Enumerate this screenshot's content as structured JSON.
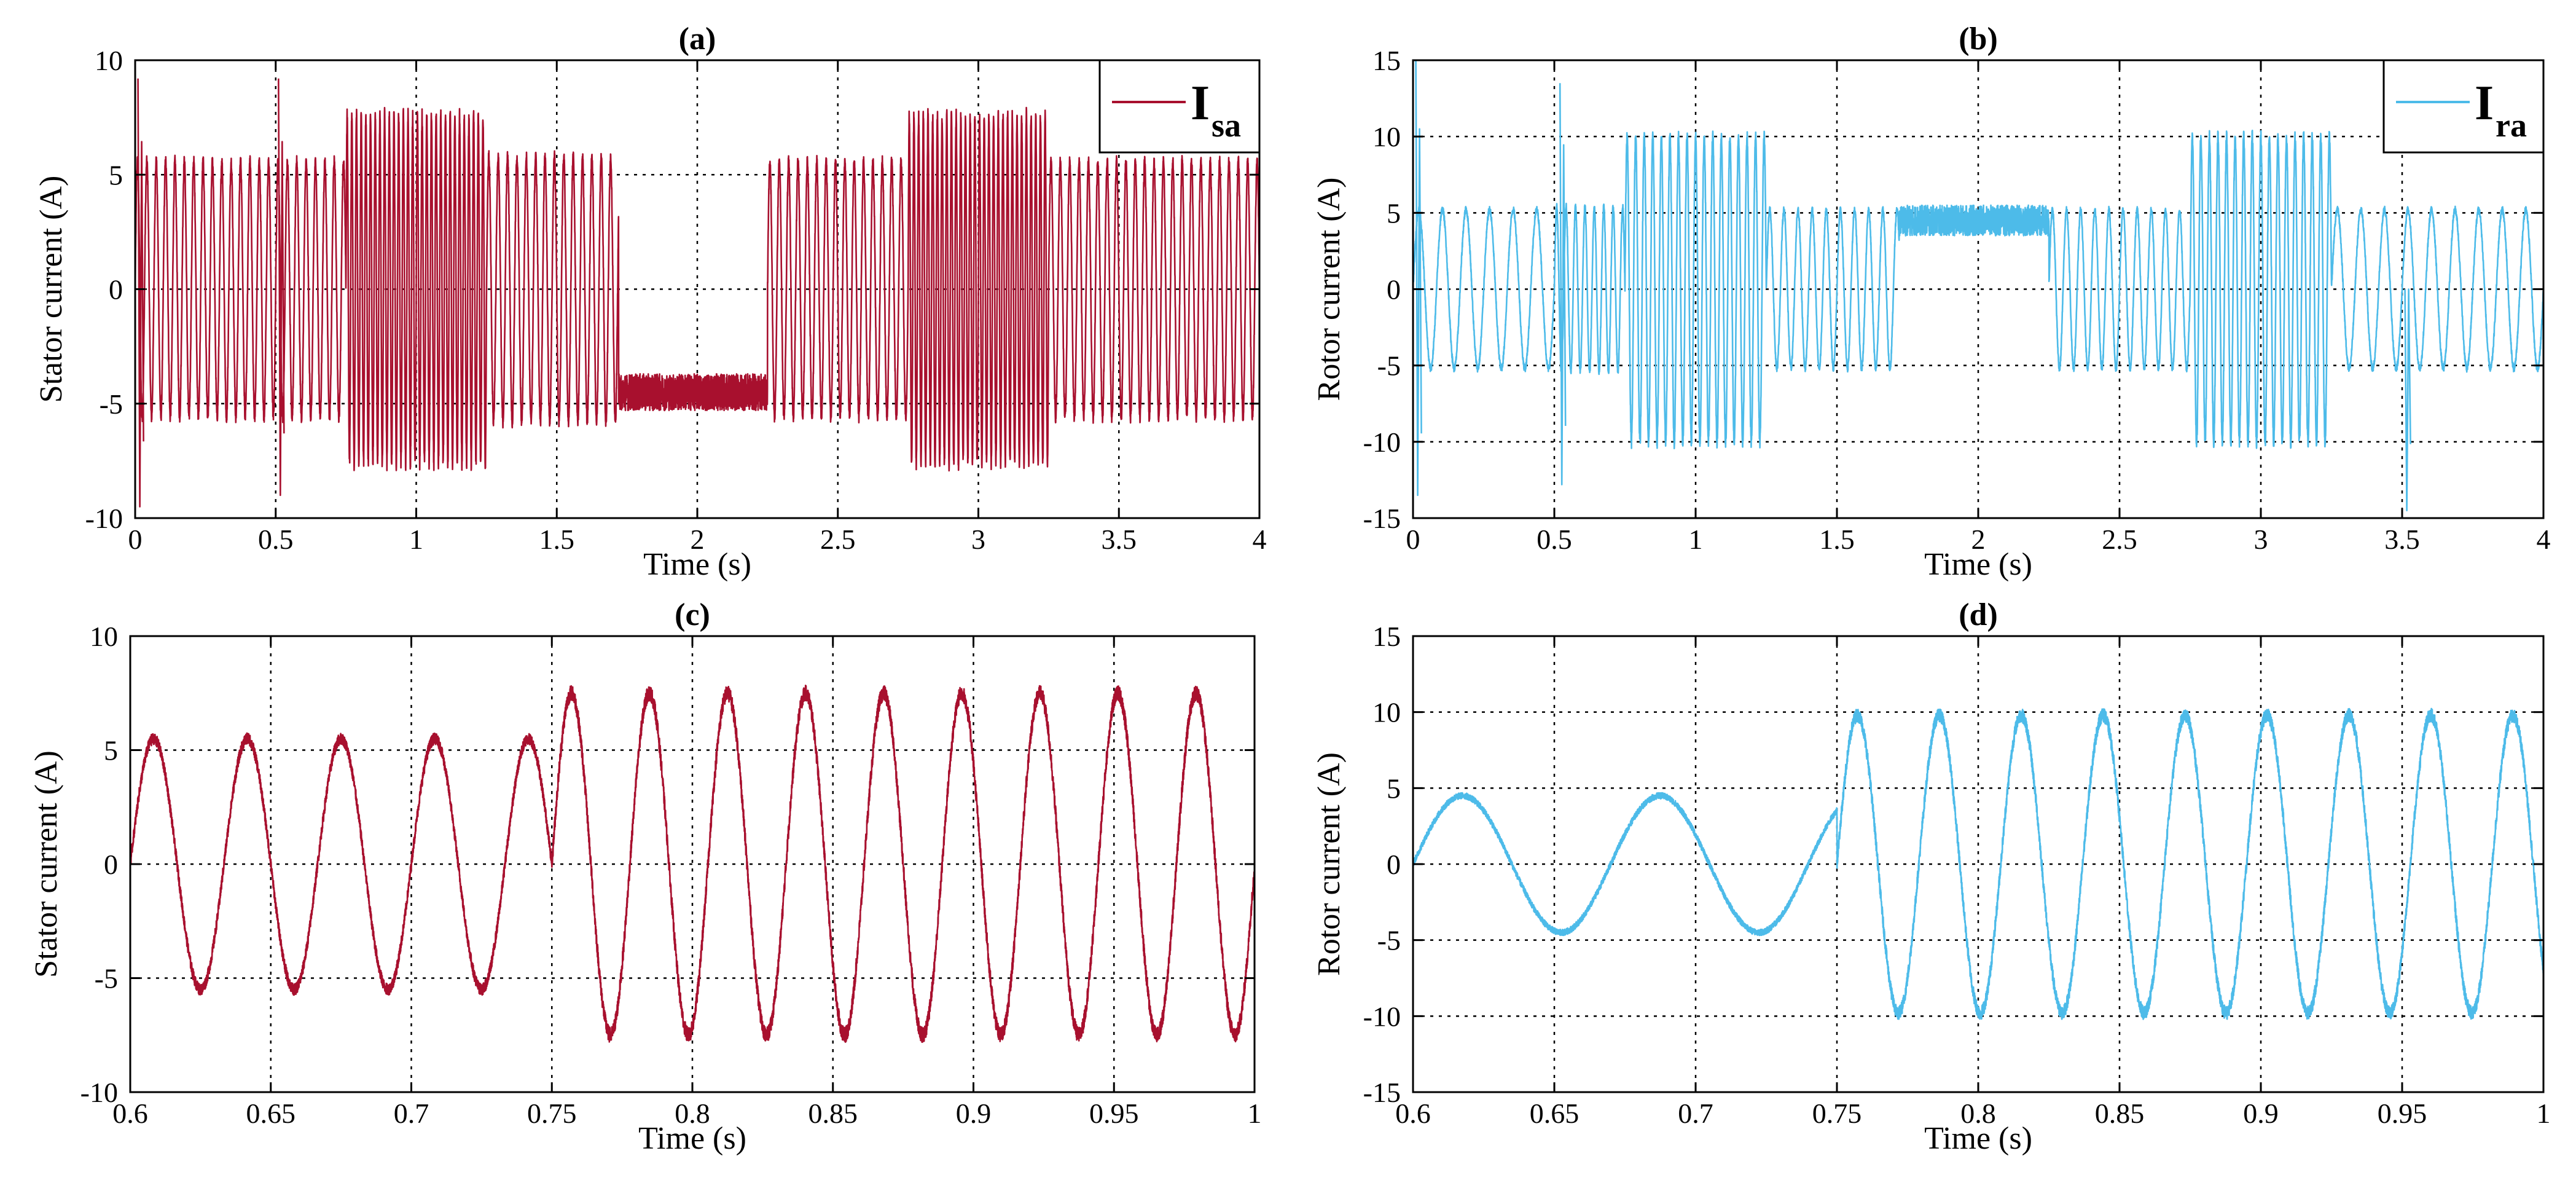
{
  "chart_data": [
    {
      "panel": "a",
      "type": "line",
      "title": "(a)",
      "xlabel": "Time (s)",
      "ylabel": "Stator current (A)",
      "xlim": [
        0,
        4
      ],
      "ylim": [
        -10,
        10
      ],
      "xticks": [
        0,
        0.5,
        1,
        1.5,
        2,
        2.5,
        3,
        3.5,
        4
      ],
      "yticks": [
        -10,
        -5,
        0,
        5,
        10
      ],
      "xtick_labels": [
        "0",
        "0.5",
        "1",
        "1.5",
        "2",
        "2.5",
        "3",
        "3.5",
        "4"
      ],
      "ytick_labels": [
        "-10",
        "-5",
        "0",
        "5",
        "10"
      ],
      "grid": true,
      "legend_position": "top-right",
      "color": "#A8102E",
      "series": [
        {
          "name_main": "I",
          "name_sub": "sa",
          "segments": [
            {
              "t_start": 0,
              "t_end": 0.75,
              "amplitude": 5.6,
              "frequency_hz": 30
            },
            {
              "t_start": 0.75,
              "t_end": 1.25,
              "amplitude": 7.6,
              "frequency_hz": 60
            },
            {
              "t_start": 1.25,
              "t_end": 1.72,
              "amplitude": 5.8,
              "frequency_hz": 30
            },
            {
              "t_start": 1.72,
              "t_end": 2.25,
              "offset": -4.5,
              "ripple": 0.8
            },
            {
              "t_start": 2.25,
              "t_end": 2.75,
              "amplitude": 5.6,
              "frequency_hz": 30
            },
            {
              "t_start": 2.75,
              "t_end": 3.25,
              "amplitude": 7.6,
              "frequency_hz": 60
            },
            {
              "t_start": 3.25,
              "t_end": 4,
              "amplitude": 5.6,
              "frequency_hz": 30
            }
          ],
          "transients": [
            {
              "t": 0.01,
              "peak_max": 9.2,
              "peak_min": -9.5
            },
            {
              "t": 0.51,
              "peak_max": 9.2,
              "peak_min": -9
            }
          ]
        }
      ]
    },
    {
      "panel": "b",
      "type": "line",
      "title": "(b)",
      "xlabel": "Time (s)",
      "ylabel": "Rotor current (A)",
      "xlim": [
        0,
        4
      ],
      "ylim": [
        -15,
        15
      ],
      "xticks": [
        0,
        0.5,
        1,
        1.5,
        2,
        2.5,
        3,
        3.5,
        4
      ],
      "yticks": [
        -15,
        -10,
        -5,
        0,
        5,
        10,
        15
      ],
      "xtick_labels": [
        "0",
        "0.5",
        "1",
        "1.5",
        "2",
        "2.5",
        "3",
        "3.5",
        "4"
      ],
      "ytick_labels": [
        "-15",
        "-10",
        "-5",
        "0",
        "5",
        "10",
        "15"
      ],
      "grid": true,
      "legend_position": "top-right",
      "color": "#4DBBE9",
      "series": [
        {
          "name_main": "I",
          "name_sub": "ra",
          "segments": [
            {
              "t_start": 0,
              "t_end": 0.5,
              "amplitude": 5.2,
              "frequency_hz": 12
            },
            {
              "t_start": 0.5,
              "t_end": 0.75,
              "amplitude": 5.4,
              "frequency_hz": 30
            },
            {
              "t_start": 0.75,
              "t_end": 1.25,
              "amplitude": 10,
              "frequency_hz": 33
            },
            {
              "t_start": 1.25,
              "t_end": 1.72,
              "amplitude": 5.2,
              "frequency_hz": 20
            },
            {
              "t_start": 1.72,
              "t_end": 2.25,
              "offset": 4.5,
              "ripple": 1
            },
            {
              "t_start": 2.25,
              "t_end": 2.75,
              "amplitude": 5.2,
              "frequency_hz": 20
            },
            {
              "t_start": 2.75,
              "t_end": 3.25,
              "amplitude": 10,
              "frequency_hz": 33
            },
            {
              "t_start": 3.25,
              "t_end": 4,
              "amplitude": 5.2,
              "frequency_hz": 12
            }
          ],
          "transients": [
            {
              "t": 0.01,
              "peak_max": 15,
              "peak_min": -13.5
            },
            {
              "t": 0.52,
              "peak_max": 13.5,
              "peak_min": -12.8
            },
            {
              "t": 3.51,
              "peak_max": 0,
              "peak_min": -14.5
            }
          ]
        }
      ]
    },
    {
      "panel": "c",
      "type": "line",
      "title": "(c)",
      "xlabel": "Time (s)",
      "ylabel": "Stator current (A)",
      "xlim": [
        0.6,
        1
      ],
      "ylim": [
        -10,
        10
      ],
      "xticks": [
        0.6,
        0.65,
        0.7,
        0.75,
        0.8,
        0.85,
        0.9,
        0.95,
        1
      ],
      "yticks": [
        -10,
        -5,
        0,
        5,
        10
      ],
      "xtick_labels": [
        "0.6",
        "0.65",
        "0.7",
        "0.75",
        "0.8",
        "0.85",
        "0.9",
        "0.95",
        "1"
      ],
      "ytick_labels": [
        "-10",
        "-5",
        "0",
        "5",
        "10"
      ],
      "grid": true,
      "color": "#A8102E",
      "series": [
        {
          "segments": [
            {
              "t_start": 0.6,
              "t_end": 0.75,
              "amplitude": 5.5,
              "frequency_hz": 30
            },
            {
              "t_start": 0.75,
              "t_end": 1,
              "amplitude": 7.5,
              "frequency_hz": 36
            }
          ]
        }
      ]
    },
    {
      "panel": "d",
      "type": "line",
      "title": "(d)",
      "xlabel": "Time (s)",
      "ylabel": "Rotor current (A)",
      "xlim": [
        0.6,
        1
      ],
      "ylim": [
        -15,
        15
      ],
      "xticks": [
        0.6,
        0.65,
        0.7,
        0.75,
        0.8,
        0.85,
        0.9,
        0.95,
        1
      ],
      "yticks": [
        -15,
        -10,
        -5,
        0,
        5,
        10,
        15
      ],
      "xtick_labels": [
        "0.6",
        "0.65",
        "0.7",
        "0.75",
        "0.8",
        "0.85",
        "0.9",
        "0.95",
        "1"
      ],
      "ytick_labels": [
        "-15",
        "-10",
        "-5",
        "0",
        "5",
        "10",
        "15"
      ],
      "grid": true,
      "color": "#4DBBE9",
      "series": [
        {
          "segments": [
            {
              "t_start": 0.6,
              "t_end": 0.75,
              "amplitude": 4.5,
              "frequency_hz": 14.3
            },
            {
              "t_start": 0.75,
              "t_end": 1,
              "amplitude": 9.8,
              "frequency_hz": 34.5
            }
          ]
        }
      ]
    }
  ]
}
